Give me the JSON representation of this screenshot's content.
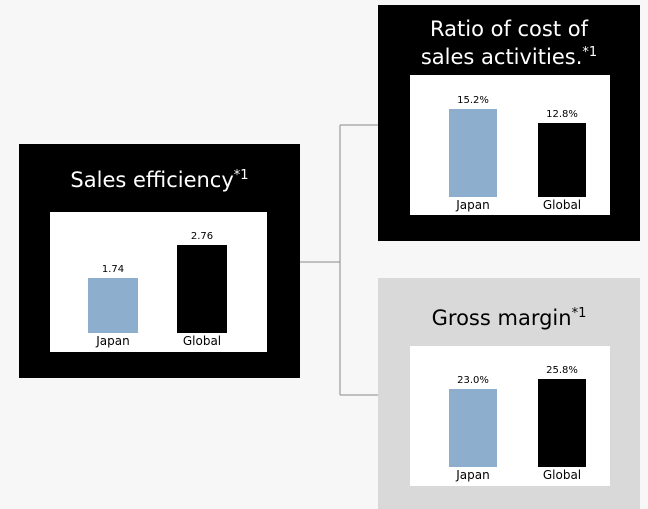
{
  "chart_data": [
    {
      "type": "bar",
      "title": [
        "Sales efficiency"
      ],
      "title_note": "*1",
      "categories": [
        "Japan",
        "Global"
      ],
      "values": [
        1.74,
        2.76
      ],
      "colors": [
        "#8eaecd",
        "#000000"
      ]
    },
    {
      "type": "bar",
      "title": [
        "Ratio of cost of",
        "sales activities."
      ],
      "title_note": "*1",
      "categories": [
        "Japan",
        "Global"
      ],
      "values": [
        15.2,
        12.8
      ],
      "value_labels": [
        "15.2%",
        "12.8%"
      ],
      "colors": [
        "#8eaecd",
        "#000000"
      ]
    },
    {
      "type": "bar",
      "title": [
        "Gross margin"
      ],
      "title_note": "*1",
      "categories": [
        "Japan",
        "Global"
      ],
      "values": [
        23.0,
        25.8
      ],
      "value_labels": [
        "23.0%",
        "25.8%"
      ],
      "colors": [
        "#8eaecd",
        "#000000"
      ]
    }
  ]
}
